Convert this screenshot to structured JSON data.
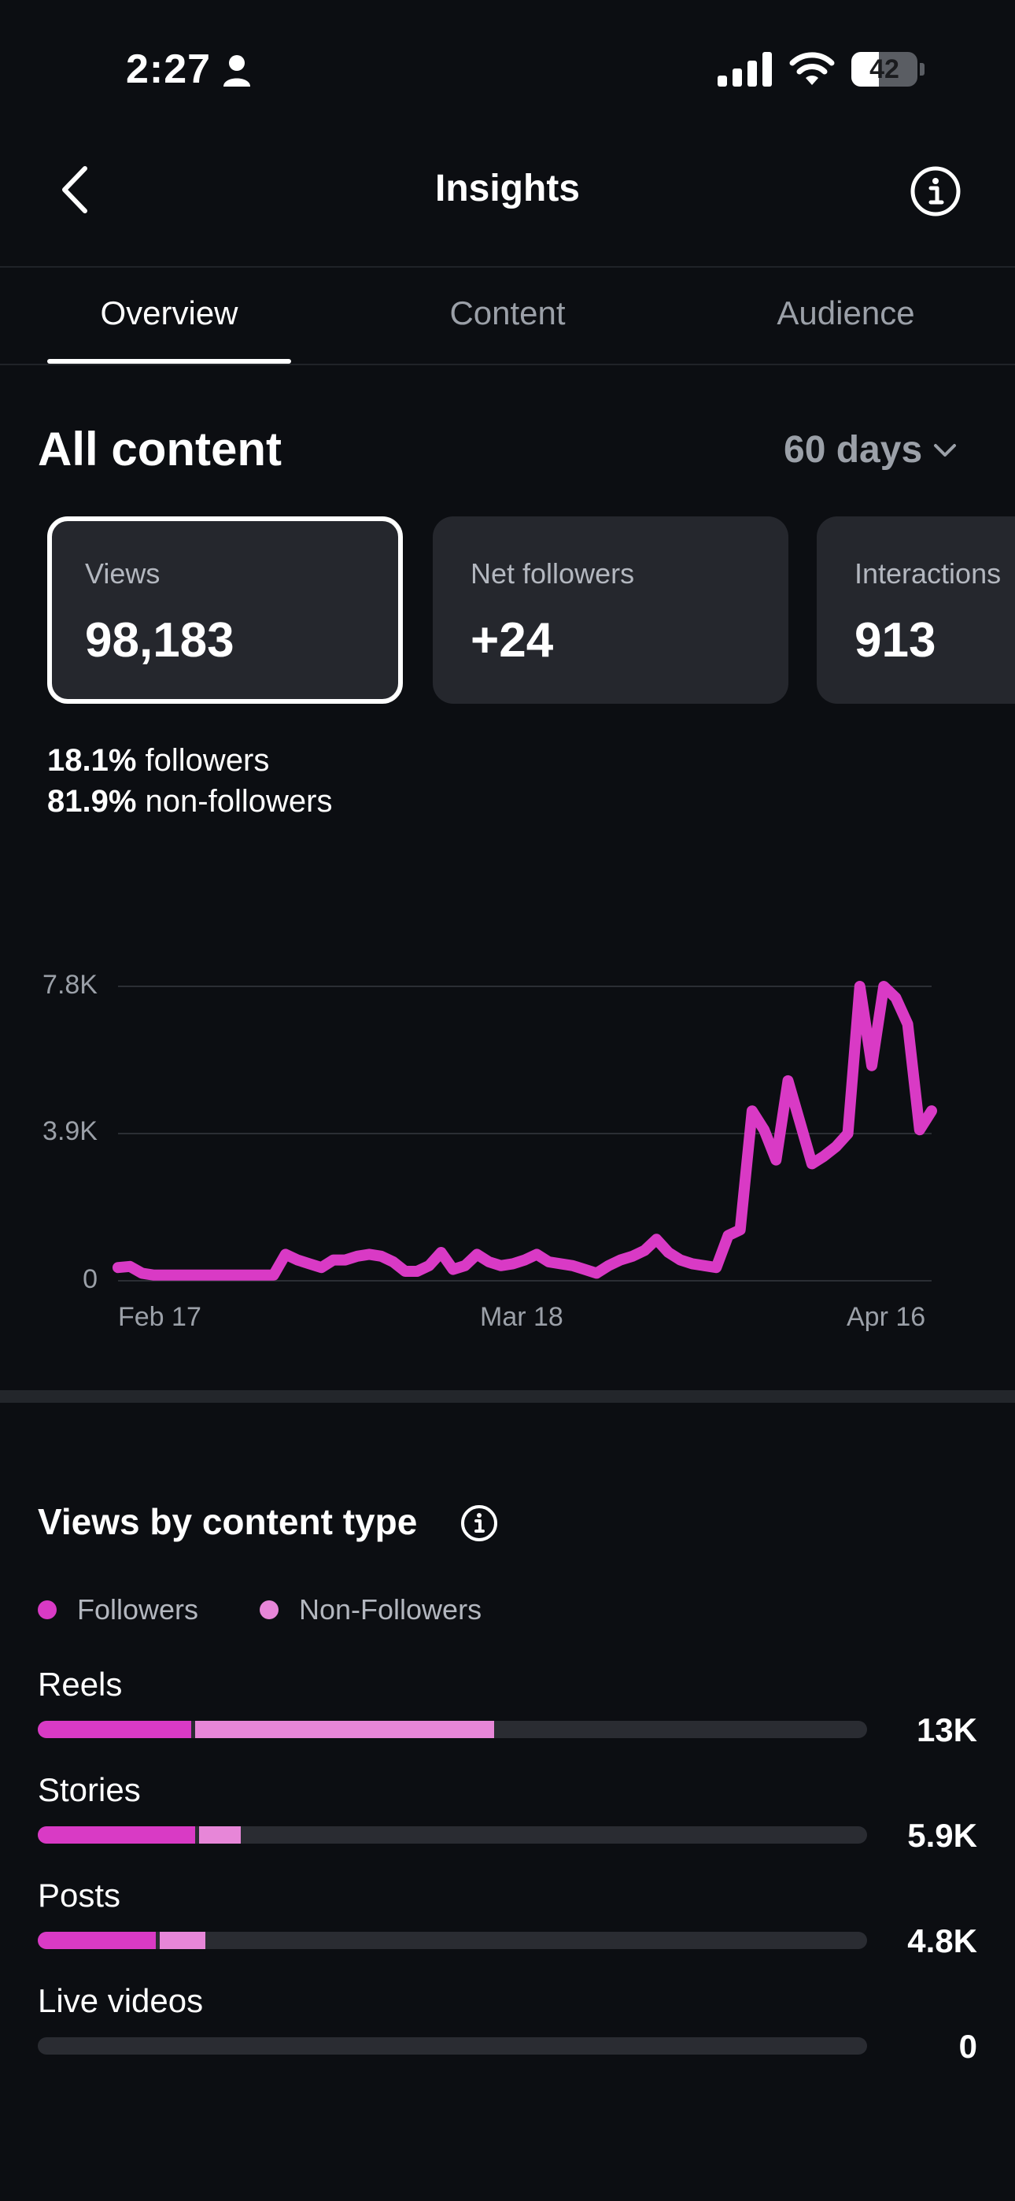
{
  "status_bar": {
    "time": "2:27",
    "battery": "42",
    "battery_level": 0.42
  },
  "header": {
    "title": "Insights"
  },
  "tabs": [
    {
      "label": "Overview",
      "active": true
    },
    {
      "label": "Content",
      "active": false
    },
    {
      "label": "Audience",
      "active": false
    }
  ],
  "section": {
    "title": "All content",
    "range": "60 days"
  },
  "cards": [
    {
      "label": "Views",
      "value": "98,183",
      "selected": true
    },
    {
      "label": "Net followers",
      "value": "+24",
      "selected": false
    },
    {
      "label": "Interactions",
      "value": "913",
      "selected": false
    }
  ],
  "audience_split": [
    {
      "percent": "18.1%",
      "label": "followers"
    },
    {
      "percent": "81.9%",
      "label": "non-followers"
    }
  ],
  "chart_data": {
    "type": "line",
    "y_ticks": [
      "7.8K",
      "3.9K",
      "0"
    ],
    "x_ticks": [
      "Feb 17",
      "Mar 18",
      "Apr 16"
    ],
    "ylim": [
      0,
      7800
    ],
    "grid": true,
    "color": "#d93ac5",
    "series": [
      {
        "values": [
          350,
          380,
          200,
          150,
          150,
          150,
          150,
          150,
          150,
          150,
          150,
          150,
          150,
          150,
          700,
          550,
          450,
          350,
          550,
          550,
          650,
          700,
          650,
          500,
          250,
          250,
          400,
          750,
          300,
          400,
          700,
          500,
          400,
          450,
          550,
          700,
          500,
          450,
          400,
          300,
          200,
          400,
          550,
          650,
          800,
          1100,
          750,
          550,
          450,
          400,
          350,
          1200,
          1350,
          4500,
          4000,
          3200,
          5300,
          4200,
          3100,
          3300,
          3550,
          3900,
          7800,
          5700,
          7800,
          7500,
          6800,
          4000,
          4500
        ]
      }
    ]
  },
  "content_type": {
    "title": "Views by content type",
    "legend": [
      {
        "label": "Followers",
        "color": "#d93ac5"
      },
      {
        "label": "Non-Followers",
        "color": "#e786d8"
      }
    ],
    "rows": [
      {
        "label": "Reels",
        "value": "13K",
        "followers_frac": 0.185,
        "nonfollowers_frac": 0.365
      },
      {
        "label": "Stories",
        "value": "5.9K",
        "followers_frac": 0.19,
        "nonfollowers_frac": 0.055
      },
      {
        "label": "Posts",
        "value": "4.8K",
        "followers_frac": 0.142,
        "nonfollowers_frac": 0.06
      },
      {
        "label": "Live videos",
        "value": "0",
        "followers_frac": 0,
        "nonfollowers_frac": 0
      }
    ]
  }
}
